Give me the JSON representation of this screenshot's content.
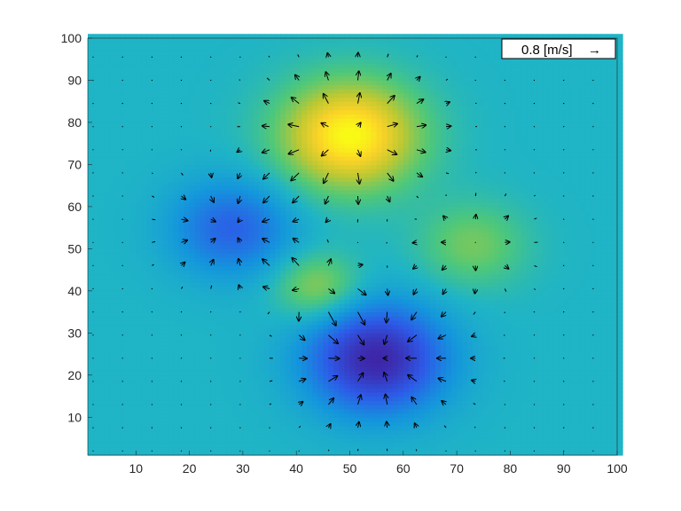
{
  "chart_data": {
    "type": "heatmap",
    "title": "",
    "xlabel": "",
    "ylabel": "",
    "xlim": [
      1,
      100
    ],
    "ylim": [
      1,
      100
    ],
    "xticks": [
      10,
      20,
      30,
      40,
      50,
      60,
      70,
      80,
      90,
      100
    ],
    "yticks": [
      10,
      20,
      30,
      40,
      50,
      60,
      70,
      80,
      90,
      100
    ],
    "grid": false,
    "colormap": "parula",
    "field_blobs": [
      {
        "x": 50,
        "y": 77,
        "amplitude": 1.0,
        "sigma": 9
      },
      {
        "x": 55,
        "y": 24,
        "amplitude": -1.0,
        "sigma": 9
      },
      {
        "x": 28,
        "y": 55,
        "amplitude": -0.55,
        "sigma": 8
      },
      {
        "x": 73,
        "y": 51,
        "amplitude": 0.35,
        "sigma": 7
      },
      {
        "x": 44,
        "y": 41,
        "amplitude": 0.45,
        "sigma": 5.5
      }
    ],
    "quiver": {
      "spacing": 5.5,
      "scale_reference": {
        "label": "0.8 [m/s]",
        "value": 0.8
      }
    }
  },
  "legend": {
    "label": "0.8 [m/s]",
    "arrow": "→"
  },
  "colors": {
    "background": "#1fb4c6",
    "arrow": "#000000",
    "axis": "#262626"
  }
}
